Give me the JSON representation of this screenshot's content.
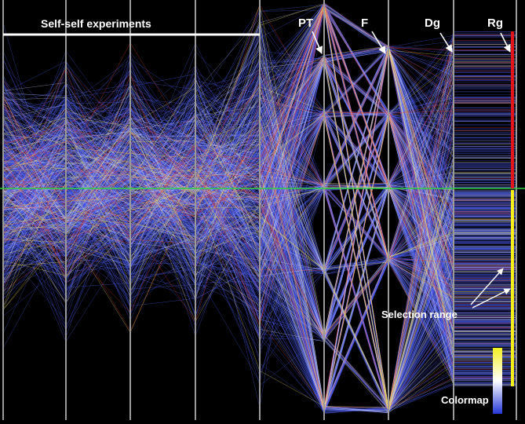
{
  "labels": {
    "group": "Self-self experiments",
    "axis_PT": "PT",
    "axis_F": "F",
    "axis_Dg": "Dg",
    "axis_Rg": "Rg",
    "selection": "Selection range",
    "colormap": "Colormap"
  },
  "colors": {
    "background": "#000000",
    "axis": "#9a9a9a",
    "line_main": "#4f5ff2",
    "line_light": "#d9dcff",
    "line_red": "#e23a2e",
    "line_yellow": "#efe060",
    "reference": "#2fd04a",
    "selection_red": "#e3151a",
    "selection_yellow": "#f7ef16",
    "text": "#ffffff",
    "colormap_top": "#f3f020",
    "colormap_mid": "#ffffff",
    "colormap_bottom": "#2438d8"
  },
  "chart_data": {
    "type": "parallel-coordinates",
    "title": "",
    "axes": [
      "",
      "",
      "",
      "",
      "PT",
      "F",
      "Dg",
      "Rg"
    ],
    "annotations": [
      "Self-self experiments",
      "Selection range",
      "Colormap"
    ],
    "grid": false
  }
}
